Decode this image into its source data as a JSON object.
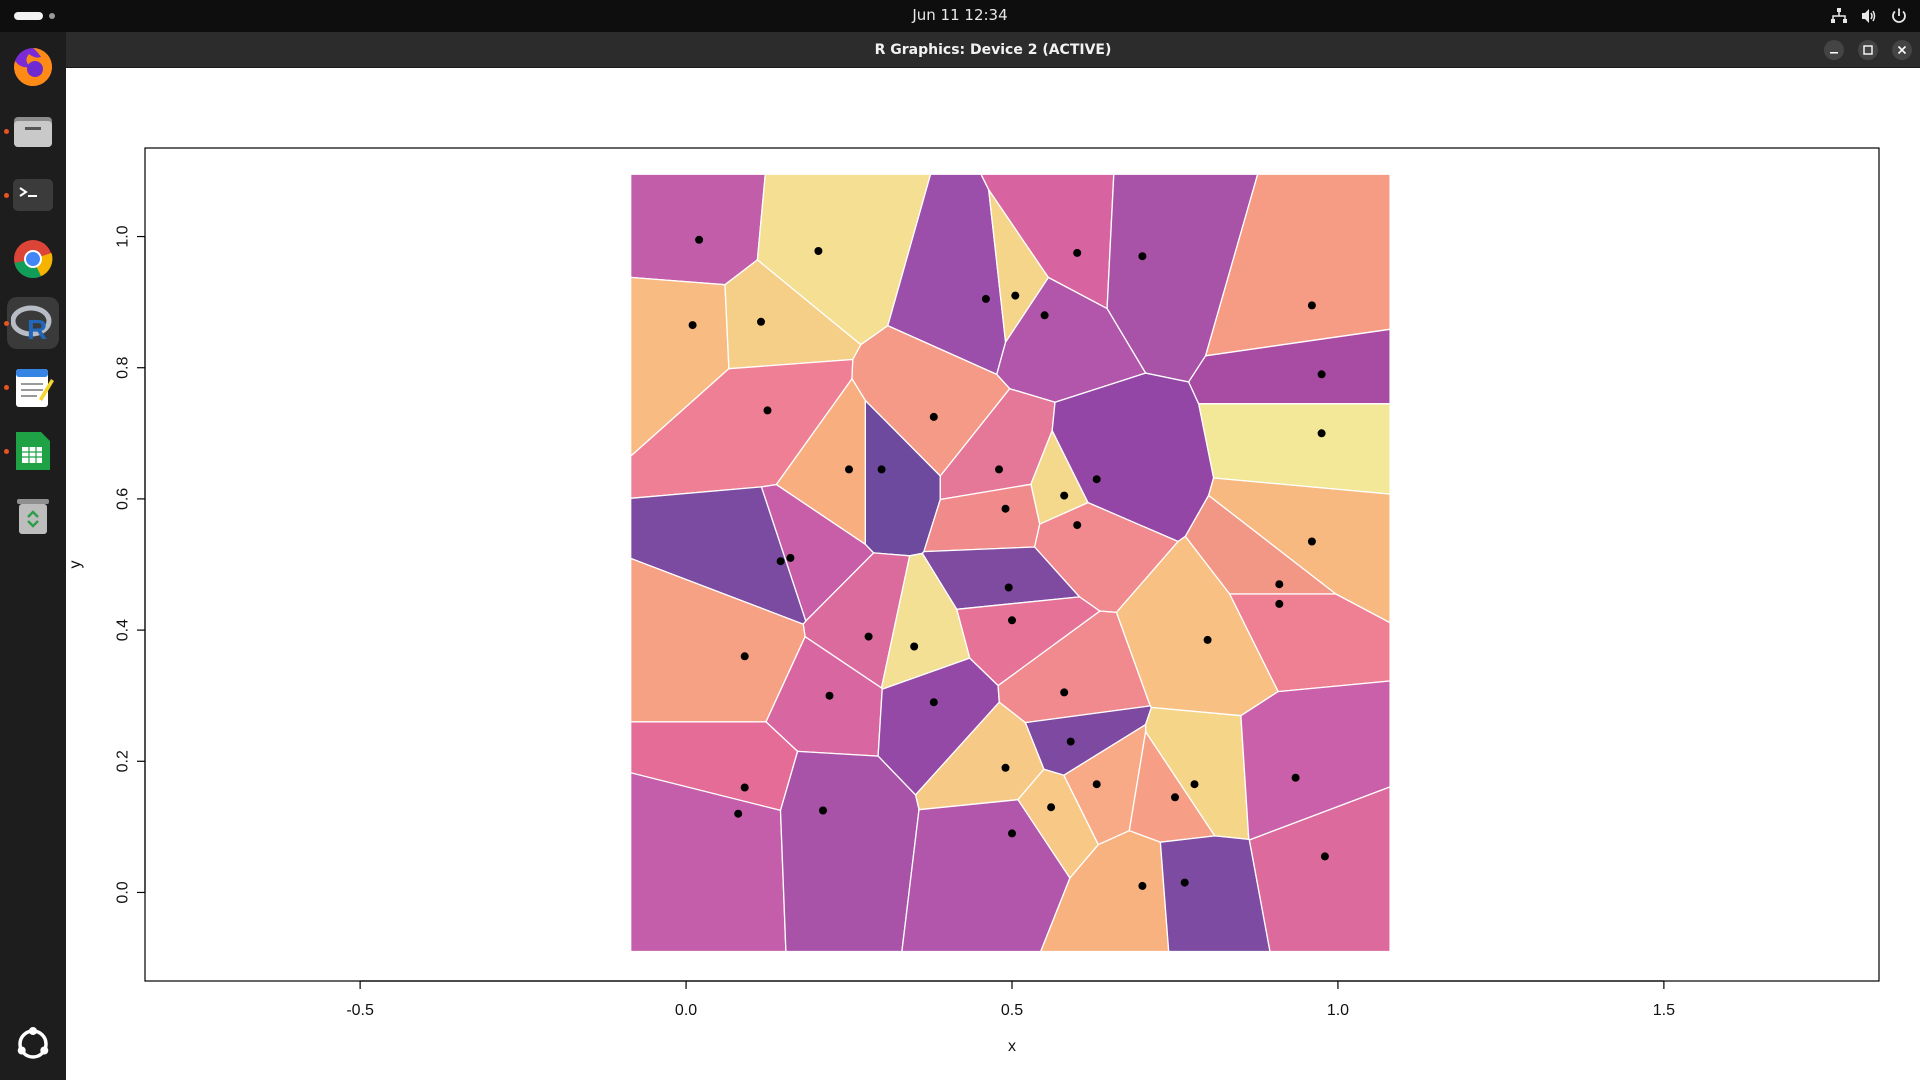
{
  "topbar": {
    "clock": "Jun 11  12:34",
    "tray_icons": [
      "network-icon",
      "volume-icon",
      "power-icon"
    ]
  },
  "dock": {
    "items": [
      {
        "name": "firefox",
        "icon": "firefox-icon",
        "running": false,
        "active": false
      },
      {
        "name": "files",
        "icon": "folder-icon",
        "running": true,
        "active": false
      },
      {
        "name": "terminal",
        "icon": "terminal-icon",
        "running": true,
        "active": false
      },
      {
        "name": "chrome",
        "icon": "chrome-icon",
        "running": false,
        "active": false
      },
      {
        "name": "r",
        "icon": "r-icon",
        "running": true,
        "active": true
      },
      {
        "name": "text-editor",
        "icon": "text-editor-icon",
        "running": true,
        "active": false
      },
      {
        "name": "calc",
        "icon": "spreadsheet-icon",
        "running": true,
        "active": false
      },
      {
        "name": "trash",
        "icon": "trash-icon",
        "running": false,
        "active": false
      }
    ],
    "apps_grid_icon": "ubuntu-apps-icon",
    "running_dot_color": "#e95420"
  },
  "window": {
    "title": "R Graphics: Device 2 (ACTIVE)",
    "buttons": [
      "minimize",
      "maximize",
      "close"
    ]
  },
  "chart_data": {
    "type": "voronoi-tessellation",
    "title": "",
    "xlabel": "x",
    "ylabel": "y",
    "x_ticks": [
      "-0.5",
      "0.0",
      "0.5",
      "1.0",
      "1.5"
    ],
    "x_tick_values": [
      -0.5,
      0,
      0.5,
      1.0,
      1.5
    ],
    "y_ticks": [
      "0.0",
      "0.2",
      "0.4",
      "0.6",
      "0.8",
      "1.0"
    ],
    "y_tick_values": [
      0,
      0.2,
      0.4,
      0.6,
      0.8,
      1.0
    ],
    "xlim": [
      -0.83,
      1.83
    ],
    "ylim": [
      -0.135,
      1.135
    ],
    "tessellation_bounds": {
      "x": [
        -0.085,
        1.08
      ],
      "y": [
        -0.09,
        1.095
      ]
    },
    "palette": [
      "#c25ea9",
      "#f5df92",
      "#9b4fab",
      "#f8bb82",
      "#f6a08a",
      "#ef7f94",
      "#7d4da0",
      "#e07094",
      "#f2e898",
      "#d764a0"
    ],
    "points": [
      {
        "x": 0.02,
        "y": 0.995,
        "cell_color": "#c25ea9"
      },
      {
        "x": 0.203,
        "y": 0.978,
        "cell_color": "#f5df92"
      },
      {
        "x": 0.46,
        "y": 0.905,
        "cell_color": "#9b4fab"
      },
      {
        "x": 0.505,
        "y": 0.91,
        "cell_color": "#f5d58a"
      },
      {
        "x": 0.6,
        "y": 0.975,
        "cell_color": "#d764a0"
      },
      {
        "x": 0.7,
        "y": 0.97,
        "cell_color": "#a853a8"
      },
      {
        "x": 0.55,
        "y": 0.88,
        "cell_color": "#b156ab"
      },
      {
        "x": 0.96,
        "y": 0.895,
        "cell_color": "#f69c85"
      },
      {
        "x": 0.01,
        "y": 0.865,
        "cell_color": "#f8bb82"
      },
      {
        "x": 0.115,
        "y": 0.87,
        "cell_color": "#f5cf88"
      },
      {
        "x": 0.125,
        "y": 0.735,
        "cell_color": "#ef7f94"
      },
      {
        "x": 0.38,
        "y": 0.725,
        "cell_color": "#f49a86"
      },
      {
        "x": 0.975,
        "y": 0.79,
        "cell_color": "#a84ba3"
      },
      {
        "x": 0.975,
        "y": 0.7,
        "cell_color": "#f2e898"
      },
      {
        "x": 0.3,
        "y": 0.645,
        "cell_color": "#6e4a9e"
      },
      {
        "x": 0.25,
        "y": 0.645,
        "cell_color": "#f8ae7e"
      },
      {
        "x": 0.48,
        "y": 0.645,
        "cell_color": "#e57799"
      },
      {
        "x": 0.58,
        "y": 0.605,
        "cell_color": "#f4d88b"
      },
      {
        "x": 0.63,
        "y": 0.63,
        "cell_color": "#9346a6"
      },
      {
        "x": 0.49,
        "y": 0.585,
        "cell_color": "#f18a8b"
      },
      {
        "x": 0.6,
        "y": 0.56,
        "cell_color": "#f08a8e"
      },
      {
        "x": 0.16,
        "y": 0.51,
        "cell_color": "#c85ea8"
      },
      {
        "x": 0.145,
        "y": 0.505,
        "cell_color": "#7b4ba1"
      },
      {
        "x": 0.96,
        "y": 0.535,
        "cell_color": "#f8b981"
      },
      {
        "x": 0.91,
        "y": 0.47,
        "cell_color": "#f29685"
      },
      {
        "x": 0.91,
        "y": 0.44,
        "cell_color": "#ef7f92"
      },
      {
        "x": 0.495,
        "y": 0.465,
        "cell_color": "#7f4ba1"
      },
      {
        "x": 0.5,
        "y": 0.415,
        "cell_color": "#e67397"
      },
      {
        "x": 0.28,
        "y": 0.39,
        "cell_color": "#db6b9d"
      },
      {
        "x": 0.35,
        "y": 0.375,
        "cell_color": "#f3e095"
      },
      {
        "x": 0.8,
        "y": 0.385,
        "cell_color": "#f8c183"
      },
      {
        "x": 0.09,
        "y": 0.36,
        "cell_color": "#f6a084"
      },
      {
        "x": 0.22,
        "y": 0.3,
        "cell_color": "#d866a0"
      },
      {
        "x": 0.38,
        "y": 0.29,
        "cell_color": "#9449a6"
      },
      {
        "x": 0.58,
        "y": 0.305,
        "cell_color": "#f08a8e"
      },
      {
        "x": 0.59,
        "y": 0.23,
        "cell_color": "#7d49a1"
      },
      {
        "x": 0.49,
        "y": 0.19,
        "cell_color": "#f6ca86"
      },
      {
        "x": 0.63,
        "y": 0.165,
        "cell_color": "#f8a985"
      },
      {
        "x": 0.78,
        "y": 0.165,
        "cell_color": "#f5d689"
      },
      {
        "x": 0.75,
        "y": 0.145,
        "cell_color": "#f69f86"
      },
      {
        "x": 0.935,
        "y": 0.175,
        "cell_color": "#c960a9"
      },
      {
        "x": 0.09,
        "y": 0.16,
        "cell_color": "#e46c97"
      },
      {
        "x": 0.08,
        "y": 0.12,
        "cell_color": "#c45eaa"
      },
      {
        "x": 0.21,
        "y": 0.125,
        "cell_color": "#a853a8"
      },
      {
        "x": 0.56,
        "y": 0.13,
        "cell_color": "#f8c886"
      },
      {
        "x": 0.5,
        "y": 0.09,
        "cell_color": "#b156ab"
      },
      {
        "x": 0.7,
        "y": 0.01,
        "cell_color": "#f8b280"
      },
      {
        "x": 0.765,
        "y": 0.015,
        "cell_color": "#7d4ba1"
      },
      {
        "x": 0.98,
        "y": 0.055,
        "cell_color": "#dc6a9c"
      }
    ],
    "grid": false,
    "legend": "none"
  }
}
